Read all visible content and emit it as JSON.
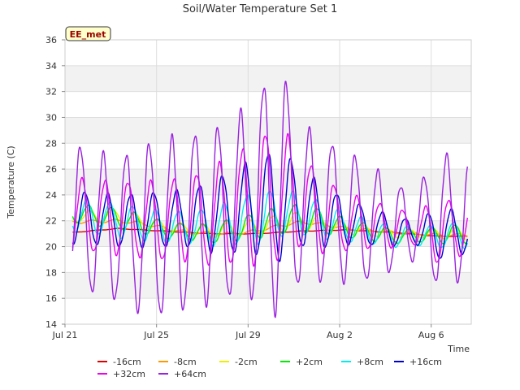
{
  "chart_data": {
    "type": "line",
    "title": "Soil/Water Temperature Set 1",
    "xlabel": "Time",
    "ylabel": "Temperature (C)",
    "site_label": "EE_met",
    "xlim": [
      "2024-07-21",
      "2024-08-07 18:00"
    ],
    "ylim": [
      14,
      36
    ],
    "yticks": [
      14,
      16,
      18,
      20,
      22,
      24,
      26,
      28,
      30,
      32,
      34,
      36
    ],
    "xticks": [
      {
        "date": "2024-07-21",
        "label": "Jul 21"
      },
      {
        "date": "2024-07-25",
        "label": "Jul 25"
      },
      {
        "date": "2024-07-29",
        "label": "Jul 29"
      },
      {
        "date": "2024-08-02",
        "label": "Aug 2"
      },
      {
        "date": "2024-08-06",
        "label": "Aug 6"
      }
    ],
    "grid": true,
    "legend_position": "bottom",
    "start": "2024-07-21 08:00",
    "end": "2024-08-07 14:00",
    "series": [
      {
        "name": "-16cm",
        "color": "#dd0000",
        "baseline": [
          [
            0,
            21.1
          ],
          [
            2,
            21.4
          ],
          [
            4,
            21.2
          ],
          [
            6,
            21.0
          ],
          [
            8,
            21.0
          ],
          [
            10,
            21.2
          ],
          [
            12,
            21.3
          ],
          [
            14,
            21.1
          ],
          [
            16,
            20.8
          ],
          [
            17.25,
            20.8
          ]
        ],
        "amplitude": [
          [
            0,
            0.02
          ],
          [
            17.25,
            0.02
          ]
        ],
        "lag": 0.7
      },
      {
        "name": "-8cm",
        "color": "#ff9900",
        "baseline": [
          [
            0,
            21.9
          ],
          [
            2,
            22.0
          ],
          [
            3,
            21.8
          ],
          [
            5,
            21.1
          ],
          [
            7,
            21.0
          ],
          [
            8,
            21.2
          ],
          [
            9,
            21.6
          ],
          [
            10,
            21.9
          ],
          [
            11,
            21.7
          ],
          [
            12,
            21.4
          ],
          [
            14,
            21.1
          ],
          [
            16,
            20.9
          ],
          [
            17.25,
            20.9
          ]
        ],
        "amplitude": [
          [
            0,
            0.12
          ],
          [
            17.25,
            0.1
          ]
        ],
        "lag": 0.55
      },
      {
        "name": "-2cm",
        "color": "#eeee00",
        "baseline": [
          [
            0,
            22.3
          ],
          [
            2,
            22.4
          ],
          [
            4,
            21.5
          ],
          [
            6,
            21.2
          ],
          [
            8,
            21.5
          ],
          [
            9,
            21.8
          ],
          [
            10,
            22.0
          ],
          [
            11,
            21.8
          ],
          [
            12,
            21.4
          ],
          [
            14,
            21.0
          ],
          [
            16,
            21.0
          ],
          [
            17.25,
            21.0
          ]
        ],
        "amplitude": [
          [
            0,
            0.4
          ],
          [
            2,
            0.5
          ],
          [
            5,
            0.4
          ],
          [
            8,
            0.6
          ],
          [
            10,
            0.7
          ],
          [
            12,
            0.4
          ],
          [
            15,
            0.3
          ],
          [
            17.25,
            0.5
          ]
        ],
        "lag": 0.45
      },
      {
        "name": "+2cm",
        "color": "#00ee00",
        "baseline": [
          [
            0,
            22.6
          ],
          [
            2,
            22.2
          ],
          [
            4,
            21.3
          ],
          [
            6,
            21.0
          ],
          [
            8,
            21.6
          ],
          [
            9,
            22.0
          ],
          [
            10,
            22.2
          ],
          [
            11,
            21.9
          ],
          [
            12,
            21.4
          ],
          [
            14,
            20.8
          ],
          [
            16,
            20.9
          ],
          [
            17.25,
            21.0
          ]
        ],
        "amplitude": [
          [
            0,
            0.7
          ],
          [
            2,
            0.8
          ],
          [
            5,
            0.6
          ],
          [
            8,
            1.0
          ],
          [
            10,
            1.1
          ],
          [
            12,
            0.7
          ],
          [
            15,
            0.5
          ],
          [
            17.25,
            0.8
          ]
        ],
        "lag": 0.4
      },
      {
        "name": "+8cm",
        "color": "#00eeee",
        "baseline": [
          [
            0,
            22.5
          ],
          [
            2,
            22.0
          ],
          [
            4,
            21.5
          ],
          [
            6,
            21.5
          ],
          [
            8,
            22.2
          ],
          [
            9,
            22.6
          ],
          [
            10,
            22.5
          ],
          [
            11,
            22.0
          ],
          [
            12,
            21.5
          ],
          [
            14,
            20.8
          ],
          [
            16,
            20.8
          ],
          [
            17.25,
            21.0
          ]
        ],
        "amplitude": [
          [
            0,
            1.3
          ],
          [
            2,
            1.3
          ],
          [
            5,
            1.2
          ],
          [
            8,
            2.0
          ],
          [
            10,
            1.6
          ],
          [
            12,
            1.1
          ],
          [
            15,
            0.7
          ],
          [
            17.25,
            1.1
          ]
        ],
        "lag": 0.33
      },
      {
        "name": "+16cm",
        "color": "#0000cc",
        "baseline": [
          [
            0,
            22.3
          ],
          [
            2,
            22.0
          ],
          [
            4,
            22.1
          ],
          [
            6,
            22.3
          ],
          [
            8,
            23.1
          ],
          [
            9,
            23.3
          ],
          [
            10,
            23.0
          ],
          [
            11,
            22.3
          ],
          [
            12,
            21.9
          ],
          [
            14,
            21.2
          ],
          [
            16,
            21.0
          ],
          [
            17.25,
            21.1
          ]
        ],
        "amplitude": [
          [
            0,
            2.0
          ],
          [
            2,
            2.0
          ],
          [
            5,
            2.2
          ],
          [
            8,
            3.7
          ],
          [
            9,
            4.3
          ],
          [
            10,
            3.0
          ],
          [
            12,
            1.7
          ],
          [
            15,
            0.9
          ],
          [
            16,
            2.0
          ],
          [
            17.25,
            1.6
          ]
        ],
        "lag": 0.25
      },
      {
        "name": "+32cm",
        "color": "#ee00ee",
        "baseline": [
          [
            0,
            22.5
          ],
          [
            2,
            22.2
          ],
          [
            4,
            22.0
          ],
          [
            6,
            22.3
          ],
          [
            8,
            23.4
          ],
          [
            9,
            24.3
          ],
          [
            10,
            23.5
          ],
          [
            11,
            22.4
          ],
          [
            12,
            21.9
          ],
          [
            14,
            21.5
          ],
          [
            16,
            21.2
          ],
          [
            17.25,
            21.4
          ]
        ],
        "amplitude": [
          [
            0,
            2.8
          ],
          [
            2,
            2.8
          ],
          [
            5,
            3.2
          ],
          [
            8,
            4.7
          ],
          [
            9,
            5.3
          ],
          [
            10,
            3.5
          ],
          [
            12,
            2.2
          ],
          [
            15,
            1.2
          ],
          [
            16,
            2.6
          ],
          [
            17.25,
            1.8
          ]
        ],
        "lag": 0.13
      },
      {
        "name": "+64cm",
        "color": "#9922dd",
        "baseline": [
          [
            0,
            22.4
          ],
          [
            2,
            21.3
          ],
          [
            4,
            21.5
          ],
          [
            6,
            22.3
          ],
          [
            8,
            23.7
          ],
          [
            9,
            24.5
          ],
          [
            10,
            23.4
          ],
          [
            11,
            22.8
          ],
          [
            12,
            22.3
          ],
          [
            14,
            21.5
          ],
          [
            16,
            22.0
          ],
          [
            17.25,
            22.2
          ]
        ],
        "amplitude": [
          [
            0,
            5.5
          ],
          [
            2,
            5.5
          ],
          [
            3,
            6.4
          ],
          [
            4,
            6.8
          ],
          [
            6,
            6.6
          ],
          [
            7,
            6.8
          ],
          [
            8,
            7.8
          ],
          [
            9,
            9.7
          ],
          [
            10,
            6.0
          ],
          [
            12,
            5.0
          ],
          [
            13,
            4.5
          ],
          [
            14,
            3.3
          ],
          [
            15,
            2.7
          ],
          [
            16,
            5.1
          ],
          [
            17.25,
            4.7
          ]
        ],
        "lag": 0.05
      }
    ]
  }
}
